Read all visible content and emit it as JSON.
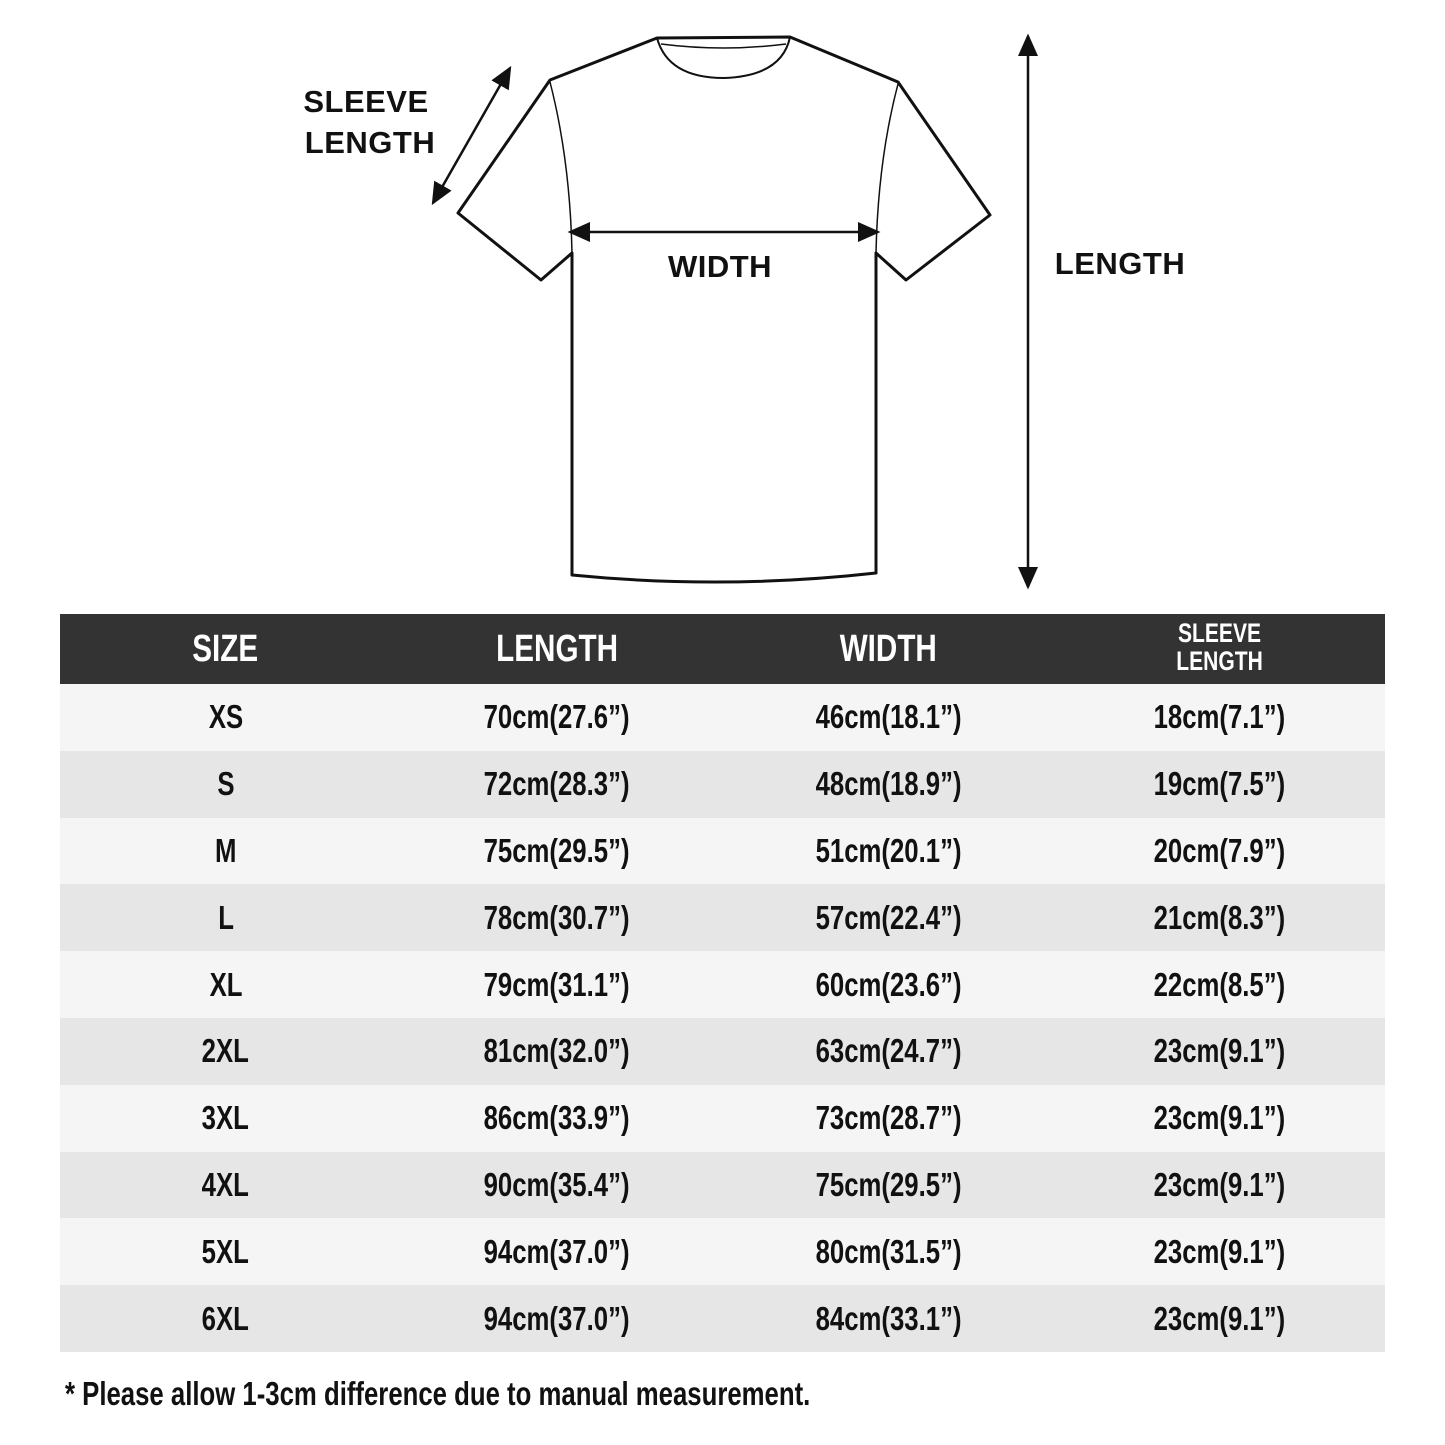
{
  "diagram": {
    "sleeve_label_line1": "SLEEVE",
    "sleeve_label_line2": "LENGTH",
    "width_label": "WIDTH",
    "length_label": "LENGTH"
  },
  "table": {
    "headers": [
      "SIZE",
      "LENGTH",
      "WIDTH"
    ],
    "sleeve_header_line1": "SLEEVE",
    "sleeve_header_line2": "LENGTH",
    "header_color": "#333333",
    "rows": [
      [
        "XS",
        "70cm(27.6”)",
        "46cm(18.1”)",
        "18cm(7.1”)"
      ],
      [
        "S",
        "72cm(28.3”)",
        "48cm(18.9”)",
        "19cm(7.5”)"
      ],
      [
        "M",
        "75cm(29.5”)",
        "51cm(20.1”)",
        "20cm(7.9”)"
      ],
      [
        "L",
        "78cm(30.7”)",
        "57cm(22.4”)",
        "21cm(8.3”)"
      ],
      [
        "XL",
        "79cm(31.1”)",
        "60cm(23.6”)",
        "22cm(8.5”)"
      ],
      [
        "2XL",
        "81cm(32.0”)",
        "63cm(24.7”)",
        "23cm(9.1”)"
      ],
      [
        "3XL",
        "86cm(33.9”)",
        "73cm(28.7”)",
        "23cm(9.1”)"
      ],
      [
        "4XL",
        "90cm(35.4”)",
        "75cm(29.5”)",
        "23cm(9.1”)"
      ],
      [
        "5XL",
        "94cm(37.0”)",
        "80cm(31.5”)",
        "23cm(9.1”)"
      ],
      [
        "6XL",
        "94cm(37.0”)",
        "84cm(33.1”)",
        "23cm(9.1”)"
      ]
    ]
  },
  "footnote": "* Please allow 1-3cm difference due to manual measurement."
}
